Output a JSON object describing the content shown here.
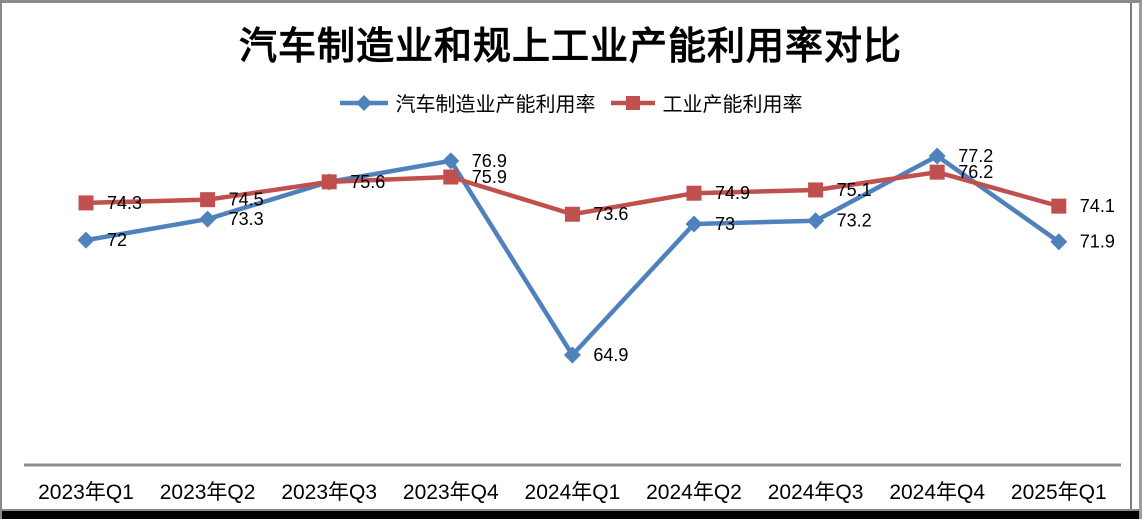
{
  "window": {
    "background": "#FFFFFF",
    "border_color": "#8A8A8A",
    "bottom_bar_color": "#000000"
  },
  "chart_data": {
    "type": "line",
    "title": "汽车制造业和规上工业产能利用率对比",
    "categories": [
      "2023年Q1",
      "2023年Q2",
      "2023年Q3",
      "2023年Q4",
      "2024年Q1",
      "2024年Q2",
      "2024年Q3",
      "2024年Q4",
      "2025年Q1"
    ],
    "series": [
      {
        "name": "汽车制造业产能利用率",
        "color": "#4F81BD",
        "marker": "diamond",
        "values": [
          72,
          73.3,
          75.6,
          76.9,
          64.9,
          73,
          73.2,
          77.2,
          71.9
        ],
        "point_labels": [
          "72",
          "73.3",
          "",
          "76.9",
          "64.9",
          "73",
          "73.2",
          "77.2",
          "71.9"
        ]
      },
      {
        "name": "工业产能利用率",
        "color": "#C0504D",
        "marker": "square",
        "values": [
          74.3,
          74.5,
          75.6,
          75.9,
          73.6,
          74.9,
          75.1,
          76.2,
          74.1
        ],
        "point_labels": [
          "74.3",
          "74.5",
          "75.6",
          "75.9",
          "73.6",
          "74.9",
          "75.1",
          "76.2",
          "74.1"
        ]
      }
    ],
    "xlabel": "",
    "ylabel": "",
    "ylim": [
      62,
      79
    ],
    "grid": false,
    "legend_position": "top",
    "axis_color": "#8E8E8E",
    "label_color": "#000000"
  }
}
